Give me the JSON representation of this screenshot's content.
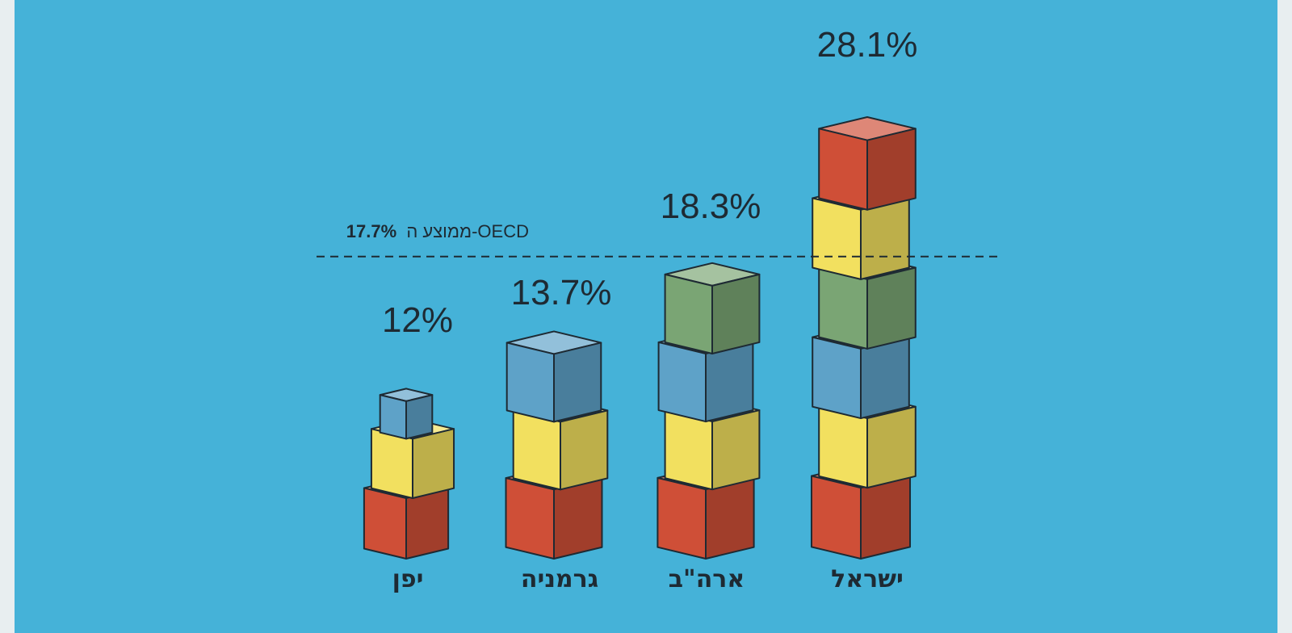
{
  "chart_data": {
    "type": "bar",
    "categories": [
      "יפן",
      "גרמניה",
      "ארה\"ב",
      "ישראל"
    ],
    "values": [
      12,
      13.7,
      18.3,
      28.1
    ],
    "value_labels": [
      "12%",
      "13.7%",
      "18.3%",
      "28.1%"
    ],
    "reference_line": {
      "value": 17.7,
      "value_label": "17.7%",
      "text": "ממוצע ה-OECD"
    },
    "colors": {
      "red": "#cf4f37",
      "yellow": "#f2e05f",
      "blue": "#5ea2c8",
      "green": "#7aa574",
      "background": "#45b2d8",
      "ink": "#1e2a33"
    }
  }
}
